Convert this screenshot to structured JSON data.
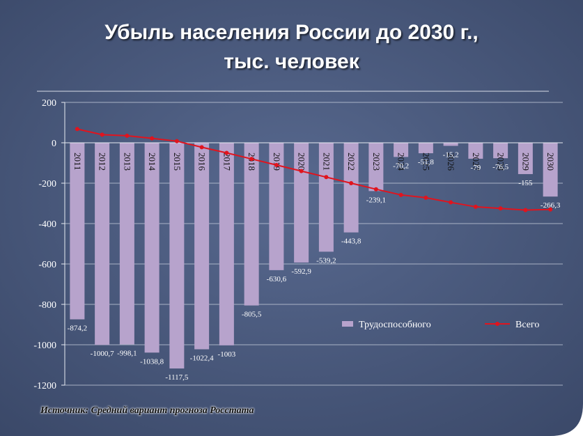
{
  "title_line1": "Убыль  населения  России   до  2030 г.,",
  "title_line2": "тыс. человек",
  "source": "Источник: Средний вариант прогноза Росстата",
  "colors": {
    "background": "#4a5a7f",
    "bar": "#b7a3cc",
    "line": "#e0141e",
    "axis": "#e8ecf3",
    "grid": "#c9d0de"
  },
  "chart_data": {
    "type": "bar",
    "categories": [
      "2011",
      "2012",
      "2013",
      "2014",
      "2015",
      "2016",
      "2017",
      "2018",
      "2019",
      "2020",
      "2021",
      "2022",
      "2023",
      "2024",
      "2025",
      "2026",
      "2027",
      "2028",
      "2029",
      "2030"
    ],
    "series": [
      {
        "name": "Трудоспособного",
        "type": "bar",
        "values": [
          -874.2,
          -1000.7,
          -998.1,
          -1038.8,
          -1117.5,
          -1022.4,
          -1003,
          -805.5,
          -630.6,
          -592.9,
          -539.2,
          -443.8,
          -239.1,
          -70.2,
          -51.8,
          -15.2,
          -79,
          -76.5,
          -155,
          -266.3
        ],
        "labels": [
          "-874,2",
          "-1000,7",
          "-998,1",
          "-1038,8",
          "-1117,5",
          "-1022,4",
          "-1003",
          "-805,5",
          "-630,6",
          "-592,9",
          "-539,2",
          "-443,8",
          "-239,1",
          "-70,2",
          "-51,8",
          "-15,2",
          "-79",
          "-76,5",
          "-155",
          "-266,3"
        ]
      },
      {
        "name": "Всего",
        "type": "line",
        "values": [
          68,
          40,
          35,
          22,
          8,
          -22,
          -50,
          -80,
          -110,
          -140,
          -170,
          -200,
          -230,
          -258,
          -272,
          -295,
          -317,
          -325,
          -333,
          -330
        ]
      }
    ],
    "ylim": [
      -1200,
      200
    ],
    "yticks": [
      200,
      0,
      -200,
      -400,
      -600,
      -800,
      -1000,
      -1200
    ],
    "ytick_labels": [
      "200",
      "0",
      "-200",
      "-400",
      "-600",
      "-800",
      "-1000",
      "-1200"
    ],
    "legend_position": "lower-right",
    "grid": true
  }
}
